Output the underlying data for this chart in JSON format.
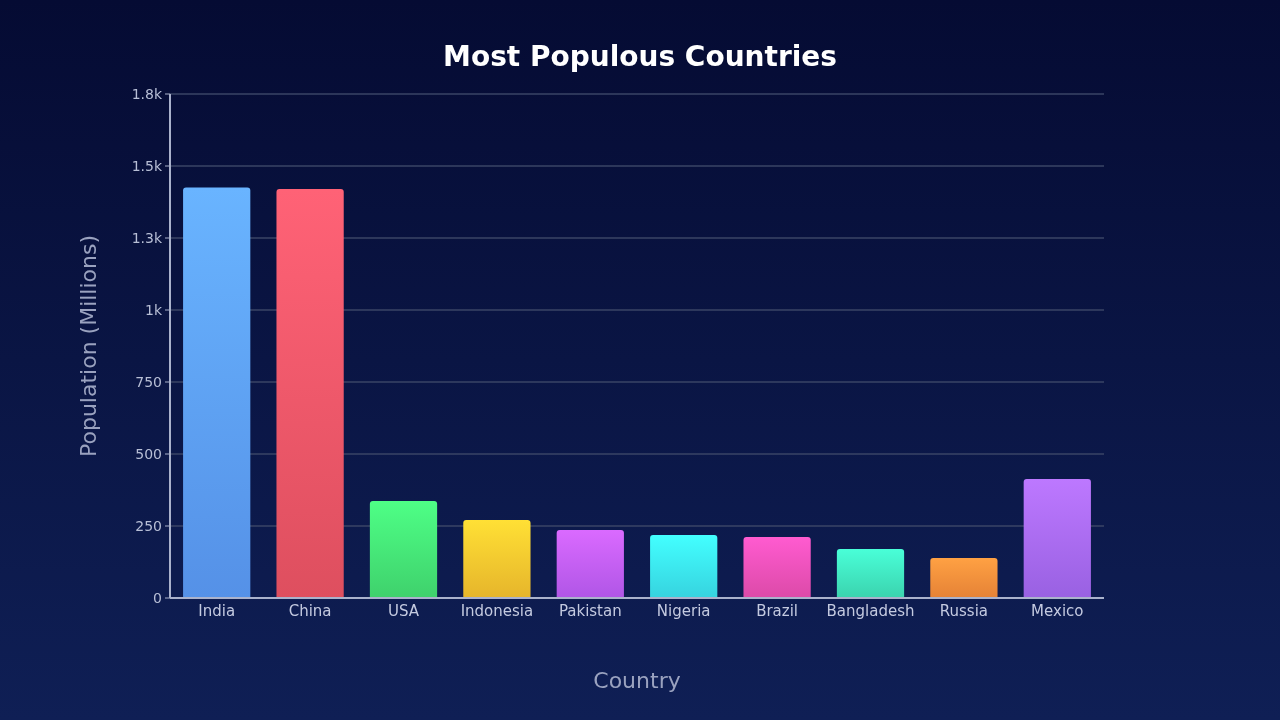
{
  "chart_data": {
    "type": "bar",
    "title": "Most Populous Countries",
    "xlabel": "Country",
    "ylabel": "Population (Millions)",
    "categories": [
      "India",
      "China",
      "USA",
      "Indonesia",
      "Pakistan",
      "Nigeria",
      "Brazil",
      "Bangladesh",
      "Russia",
      "Mexico"
    ],
    "values": [
      1425,
      1420,
      337,
      271,
      236,
      219,
      212,
      170,
      139,
      413
    ],
    "colors": [
      "#5b9cf8",
      "#ee5566",
      "#44e074",
      "#f7c22e",
      "#bd5cf7",
      "#3ae3f0",
      "#ec4fb4",
      "#3fe3bb",
      "#f68c3a",
      "#a468f3"
    ],
    "ylim": [
      0,
      1750
    ],
    "yticks": [
      0,
      250,
      500,
      750,
      {
        "value": 1000,
        "label": "1k"
      },
      {
        "value": 1250,
        "label": "1.3k"
      },
      {
        "value": 1500,
        "label": "1.5k"
      },
      {
        "value": 1750,
        "label": "1.8k"
      }
    ],
    "grid": "y"
  }
}
